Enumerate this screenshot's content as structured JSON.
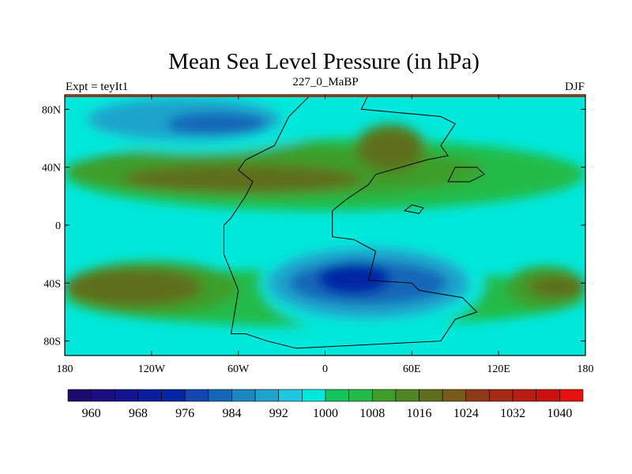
{
  "chart_data": {
    "type": "heatmap",
    "title": "Mean Sea Level Pressure (in hPa)",
    "left_label": "Expt = teyIt1",
    "center_label": "227_0_MaBP",
    "right_label": "DJF",
    "x_axis": {
      "range": [
        -180,
        180
      ],
      "ticks": [
        {
          "value": -180,
          "label": "180"
        },
        {
          "value": -120,
          "label": "120W"
        },
        {
          "value": -60,
          "label": "60W"
        },
        {
          "value": 0,
          "label": "0"
        },
        {
          "value": 60,
          "label": "60E"
        },
        {
          "value": 120,
          "label": "120E"
        },
        {
          "value": 180,
          "label": "180"
        }
      ]
    },
    "y_axis": {
      "range": [
        -90,
        90
      ],
      "ticks": [
        {
          "value": 80,
          "label": "80N"
        },
        {
          "value": 40,
          "label": "40N"
        },
        {
          "value": 0,
          "label": "0"
        },
        {
          "value": -40,
          "label": "40S"
        },
        {
          "value": -80,
          "label": "80S"
        }
      ]
    },
    "colorbar": {
      "levels": [
        960,
        964,
        968,
        972,
        976,
        980,
        984,
        988,
        992,
        996,
        1000,
        1004,
        1008,
        1012,
        1016,
        1020,
        1024,
        1028,
        1032,
        1036,
        1040
      ],
      "colors": [
        "#1d0a6b",
        "#1c0d80",
        "#15148f",
        "#0c1c9e",
        "#0525a6",
        "#1446b0",
        "#1566b8",
        "#1b86c0",
        "#1ea4cc",
        "#22c6dc",
        "#00e8dc",
        "#13c35c",
        "#22bb49",
        "#3d9e2c",
        "#508524",
        "#5e6e1e",
        "#7a5a1a",
        "#8e3a18",
        "#a42a16",
        "#b81d14",
        "#cc1010",
        "#e61010"
      ],
      "labels": [
        {
          "value": 960,
          "label": "960"
        },
        {
          "value": 968,
          "label": "968"
        },
        {
          "value": 976,
          "label": "976"
        },
        {
          "value": 984,
          "label": "984"
        },
        {
          "value": 992,
          "label": "992"
        },
        {
          "value": 1000,
          "label": "1000"
        },
        {
          "value": 1008,
          "label": "1008"
        },
        {
          "value": 1016,
          "label": "1016"
        },
        {
          "value": 1024,
          "label": "1024"
        },
        {
          "value": 1032,
          "label": "1032"
        },
        {
          "value": 1040,
          "label": "1040"
        }
      ]
    },
    "pressure_regions": [
      {
        "name": "southern-belt",
        "lon_min": -180,
        "lon_max": 180,
        "lat_min": -70,
        "lat_max": -30,
        "level": 1004
      },
      {
        "name": "pacific-subtropical-high-south",
        "lon_min": -180,
        "lon_max": -60,
        "lat_min": -62,
        "lat_max": -25,
        "level": 1008
      },
      {
        "name": "pacific-high-south-core",
        "lon_min": -180,
        "lon_max": -85,
        "lat_min": -56,
        "lat_max": -30,
        "level": 1016
      },
      {
        "name": "east-pacific-high-south",
        "lon_min": 125,
        "lon_max": 180,
        "lat_min": -58,
        "lat_max": -28,
        "level": 1008
      },
      {
        "name": "east-pacific-high-south-core",
        "lon_min": 140,
        "lon_max": 180,
        "lat_min": -50,
        "lat_max": -35,
        "level": 1016
      },
      {
        "name": "northern-belt",
        "lon_min": -180,
        "lon_max": 180,
        "lat_min": 10,
        "lat_max": 60,
        "level": 1004
      },
      {
        "name": "northern-high-band",
        "lon_min": -180,
        "lon_max": 110,
        "lat_min": 20,
        "lat_max": 55,
        "level": 1008
      },
      {
        "name": "northern-high-core",
        "lon_min": -140,
        "lon_max": 25,
        "lat_min": 22,
        "lat_max": 42,
        "level": 1016
      },
      {
        "name": "pangea-north-high",
        "lon_min": 20,
        "lon_max": 70,
        "lat_min": 35,
        "lat_max": 70,
        "level": 1012
      },
      {
        "name": "pangea-north-high-core",
        "lon_min": 25,
        "lon_max": 65,
        "lat_min": 40,
        "lat_max": 65,
        "level": 1016
      },
      {
        "name": "arctic-low-outer",
        "lon_min": -180,
        "lon_max": 0,
        "lat_min": 50,
        "lat_max": 90,
        "level": 996
      },
      {
        "name": "arctic-low-mid",
        "lon_min": -165,
        "lon_max": -30,
        "lat_min": 58,
        "lat_max": 88,
        "level": 988
      },
      {
        "name": "arctic-low-core",
        "lon_min": -110,
        "lon_max": -40,
        "lat_min": 62,
        "lat_max": 78,
        "level": 980
      },
      {
        "name": "arctic-east-low",
        "lon_min": 100,
        "lon_max": 180,
        "lat_min": 68,
        "lat_max": 88,
        "level": 996
      },
      {
        "name": "gondwana-low-outer",
        "lon_min": -45,
        "lon_max": 110,
        "lat_min": -75,
        "lat_max": -5,
        "level": 996
      },
      {
        "name": "gondwana-low-mid",
        "lon_min": -40,
        "lon_max": 100,
        "lat_min": -65,
        "lat_max": -15,
        "level": 988
      },
      {
        "name": "gondwana-low-inner",
        "lon_min": -25,
        "lon_max": 85,
        "lat_min": -55,
        "lat_max": -25,
        "level": 980
      },
      {
        "name": "gondwana-low-core",
        "lon_min": -5,
        "lon_max": 45,
        "lat_min": -48,
        "lat_max": -25,
        "level": 972
      }
    ],
    "coastline_lonlat": [
      [
        -65,
        5
      ],
      [
        -55,
        20
      ],
      [
        -50,
        30
      ],
      [
        -60,
        38
      ],
      [
        -55,
        45
      ],
      [
        -35,
        55
      ],
      [
        -25,
        75
      ],
      [
        -15,
        85
      ],
      [
        -10,
        90
      ],
      [
        30,
        90
      ],
      [
        25,
        80
      ],
      [
        80,
        75
      ],
      [
        90,
        70
      ],
      [
        80,
        55
      ],
      [
        85,
        48
      ],
      [
        70,
        45
      ],
      [
        35,
        35
      ],
      [
        30,
        28
      ],
      [
        15,
        18
      ],
      [
        5,
        10
      ],
      [
        5,
        -8
      ],
      [
        20,
        -10
      ],
      [
        35,
        -18
      ],
      [
        30,
        -38
      ],
      [
        60,
        -40
      ],
      [
        65,
        -45
      ],
      [
        95,
        -50
      ],
      [
        105,
        -60
      ],
      [
        90,
        -65
      ],
      [
        80,
        -80
      ],
      [
        -20,
        -85
      ],
      [
        -40,
        -80
      ],
      [
        -55,
        -75
      ],
      [
        -65,
        -75
      ],
      [
        -60,
        -45
      ],
      [
        -70,
        -20
      ],
      [
        -70,
        0
      ],
      [
        -65,
        5
      ]
    ],
    "coastline_island_lonlat": [
      [
        [
          55,
          10
        ],
        [
          65,
          8
        ],
        [
          68,
          12
        ],
        [
          60,
          14
        ],
        [
          55,
          10
        ]
      ],
      [
        [
          85,
          30
        ],
        [
          100,
          30
        ],
        [
          110,
          35
        ],
        [
          105,
          40
        ],
        [
          90,
          40
        ],
        [
          85,
          30
        ]
      ]
    ]
  }
}
